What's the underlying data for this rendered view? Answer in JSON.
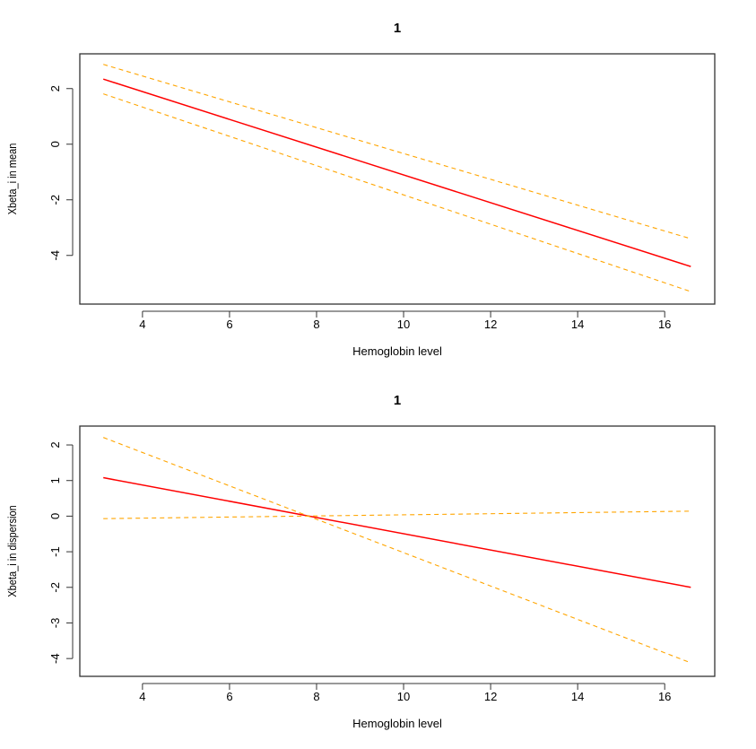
{
  "chart_data": [
    {
      "type": "line",
      "title": "1",
      "xlabel": "Hemoglobin level",
      "ylabel": "Xbeta_i in mean",
      "xlim": [
        2.56,
        17.15
      ],
      "ylim": [
        -5.75,
        3.25
      ],
      "xticks": [
        "4",
        "6",
        "8",
        "10",
        "12",
        "14",
        "16"
      ],
      "yticks": [
        "2",
        "0",
        "-2",
        "-4"
      ],
      "grid": false,
      "series": [
        {
          "style": "solid",
          "color": "#ff0000",
          "x": [
            3.1,
            16.6
          ],
          "y": [
            2.34,
            -4.4
          ]
        },
        {
          "style": "dashed",
          "color": "#ffa500",
          "x": [
            3.1,
            16.6
          ],
          "y": [
            2.87,
            -3.4
          ]
        },
        {
          "style": "dashed",
          "color": "#ffa500",
          "x": [
            3.1,
            16.6
          ],
          "y": [
            1.81,
            -5.3
          ]
        }
      ]
    },
    {
      "type": "line",
      "title": "1",
      "xlabel": "Hemoglobin level",
      "ylabel": "Xbeta_i in dispersion",
      "xlim": [
        2.56,
        17.15
      ],
      "ylim": [
        -4.5,
        2.53
      ],
      "xticks": [
        "4",
        "6",
        "8",
        "10",
        "12",
        "14",
        "16"
      ],
      "yticks": [
        "2",
        "1",
        "0",
        "-1",
        "-2",
        "-3",
        "-4"
      ],
      "grid": false,
      "series": [
        {
          "style": "solid",
          "color": "#ff0000",
          "x": [
            3.1,
            16.6
          ],
          "y": [
            1.08,
            -2.0
          ]
        },
        {
          "style": "dashed",
          "color": "#ffa500",
          "x": [
            3.1,
            16.6
          ],
          "y": [
            2.21,
            -4.12
          ]
        },
        {
          "style": "dashed",
          "color": "#ffa500",
          "x": [
            3.1,
            16.6
          ],
          "y": [
            -0.07,
            0.14
          ]
        }
      ]
    }
  ]
}
